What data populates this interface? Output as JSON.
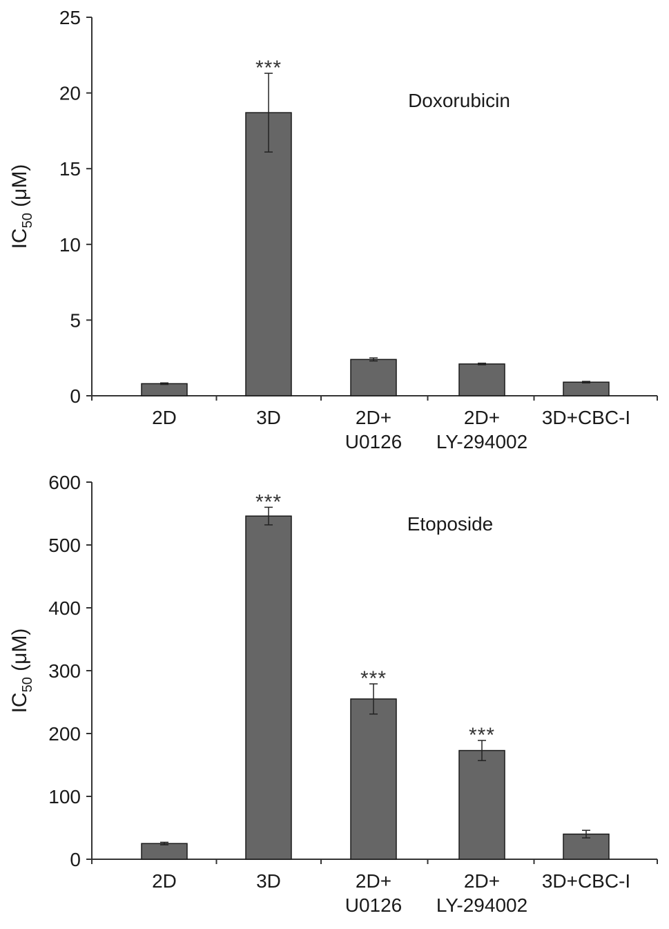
{
  "chart_data": [
    {
      "type": "bar",
      "title": "Doxorubicin",
      "ylabel": {
        "main": "IC",
        "sub": "50",
        "unit": " (μM)"
      },
      "ylim": [
        0,
        25
      ],
      "yticks": [
        0,
        5,
        10,
        15,
        20,
        25
      ],
      "categories": [
        [
          "2D"
        ],
        [
          "3D"
        ],
        [
          "2D+",
          "U0126"
        ],
        [
          "2D+",
          "LY-294002"
        ],
        [
          "3D+CBC-I"
        ]
      ],
      "values": [
        0.8,
        18.7,
        2.4,
        2.1,
        0.9
      ],
      "errors": [
        0.05,
        2.6,
        0.1,
        0.05,
        0.05
      ],
      "significance": [
        "",
        "***",
        "",
        "",
        ""
      ],
      "bar_color": "#666666"
    },
    {
      "type": "bar",
      "title": "Etoposide",
      "ylabel": {
        "main": "IC",
        "sub": "50",
        "unit": " (μM)"
      },
      "ylim": [
        0,
        600
      ],
      "yticks": [
        0,
        100,
        200,
        300,
        400,
        500,
        600
      ],
      "categories": [
        [
          "2D"
        ],
        [
          "3D"
        ],
        [
          "2D+",
          "U0126"
        ],
        [
          "2D+",
          "LY-294002"
        ],
        [
          "3D+CBC-I"
        ]
      ],
      "values": [
        25,
        546,
        255,
        173,
        40
      ],
      "errors": [
        2,
        14,
        24,
        16,
        6
      ],
      "significance": [
        "",
        "***",
        "***",
        "***",
        ""
      ],
      "bar_color": "#666666"
    }
  ]
}
